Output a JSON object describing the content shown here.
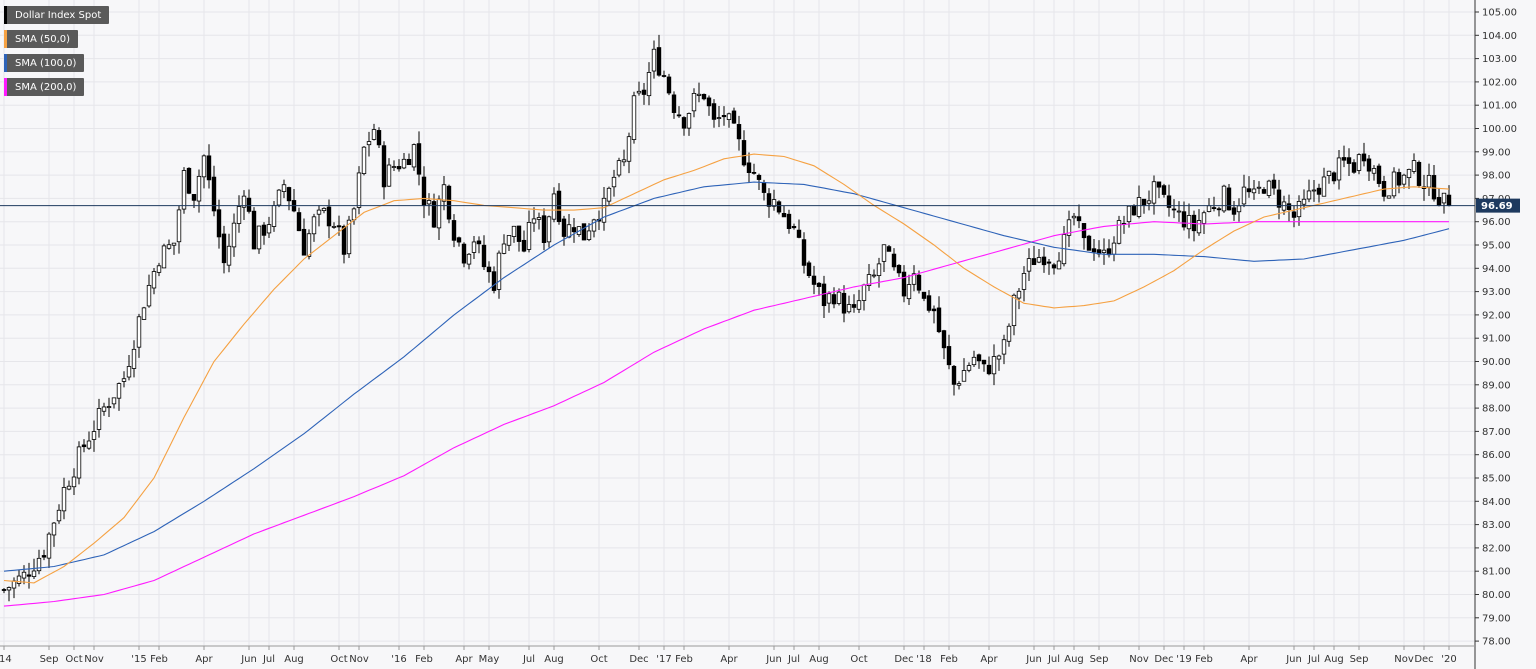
{
  "legend": {
    "main_label": "Dollar Index Spot",
    "sma50_label": "SMA (50,0)",
    "sma100_label": "SMA (100,0)",
    "sma200_label": "SMA (200,0)"
  },
  "colors": {
    "background": "#f7f7f9",
    "grid": "#e6e6ea",
    "candle_up": "#ffffff",
    "candle_down": "#000000",
    "sma50": "#f5a142",
    "sma100": "#2e63b8",
    "sma200": "#ff1aff",
    "price_line": "#1e3a5f",
    "legend_bg": "#5a5a5a"
  },
  "chart_data": {
    "type": "candlestick",
    "title": "",
    "ylim": [
      78,
      105.5
    ],
    "y_ticks": [
      "105.00",
      "104.00",
      "103.00",
      "102.00",
      "101.00",
      "100.00",
      "99.00",
      "98.00",
      "97.00",
      "96.00",
      "95.00",
      "94.00",
      "93.00",
      "92.00",
      "91.00",
      "90.00",
      "89.00",
      "88.00",
      "87.00",
      "86.00",
      "85.00",
      "84.00",
      "83.00",
      "82.00",
      "81.00",
      "80.00",
      "79.00",
      "78.00"
    ],
    "x_labels": [
      {
        "label": "'14",
        "week": 0
      },
      {
        "label": "Sep",
        "week": 9
      },
      {
        "label": "Oct",
        "week": 14
      },
      {
        "label": "Nov",
        "week": 18
      },
      {
        "label": "'15",
        "week": 27
      },
      {
        "label": "Feb",
        "week": 31
      },
      {
        "label": "Apr",
        "week": 40
      },
      {
        "label": "Jun",
        "week": 49
      },
      {
        "label": "Jul",
        "week": 53
      },
      {
        "label": "Aug",
        "week": 58
      },
      {
        "label": "Oct",
        "week": 67
      },
      {
        "label": "Nov",
        "week": 71
      },
      {
        "label": "'16",
        "week": 79
      },
      {
        "label": "Feb",
        "week": 84
      },
      {
        "label": "Apr",
        "week": 92
      },
      {
        "label": "May",
        "week": 97
      },
      {
        "label": "Jul",
        "week": 105
      },
      {
        "label": "Aug",
        "week": 110
      },
      {
        "label": "Oct",
        "week": 119
      },
      {
        "label": "Dec",
        "week": 127
      },
      {
        "label": "'17",
        "week": 132
      },
      {
        "label": "Feb",
        "week": 136
      },
      {
        "label": "Apr",
        "week": 145
      },
      {
        "label": "Jun",
        "week": 154
      },
      {
        "label": "Jul",
        "week": 158
      },
      {
        "label": "Aug",
        "week": 163
      },
      {
        "label": "Oct",
        "week": 171
      },
      {
        "label": "Dec",
        "week": 180
      },
      {
        "label": "'18",
        "week": 184
      },
      {
        "label": "Feb",
        "week": 189
      },
      {
        "label": "Apr",
        "week": 197
      },
      {
        "label": "Jun",
        "week": 206
      },
      {
        "label": "Jul",
        "week": 210
      },
      {
        "label": "Aug",
        "week": 214
      },
      {
        "label": "Sep",
        "week": 219
      },
      {
        "label": "Nov",
        "week": 227
      },
      {
        "label": "Dec",
        "week": 232
      },
      {
        "label": "'19",
        "week": 236
      },
      {
        "label": "Feb",
        "week": 240
      },
      {
        "label": "Apr",
        "week": 249
      },
      {
        "label": "Jun",
        "week": 258
      },
      {
        "label": "Jul",
        "week": 262
      },
      {
        "label": "Aug",
        "week": 266
      },
      {
        "label": "Sep",
        "week": 271
      },
      {
        "label": "Nov",
        "week": 280
      },
      {
        "label": "Dec",
        "week": 284
      },
      {
        "label": "'20",
        "week": 289
      }
    ],
    "last_price_label": "96.69",
    "last_price": 96.69,
    "close_anchors": [
      [
        0,
        80.2
      ],
      [
        4,
        80.8
      ],
      [
        8,
        81.9
      ],
      [
        12,
        84.5
      ],
      [
        16,
        86.4
      ],
      [
        20,
        88.0
      ],
      [
        24,
        89.3
      ],
      [
        28,
        92.6
      ],
      [
        31,
        94.5
      ],
      [
        34,
        95.1
      ],
      [
        36,
        98.0
      ],
      [
        38,
        97.2
      ],
      [
        40,
        98.8
      ],
      [
        42,
        96.5
      ],
      [
        44,
        94.2
      ],
      [
        46,
        95.8
      ],
      [
        48,
        97.5
      ],
      [
        50,
        95.1
      ],
      [
        52,
        95.7
      ],
      [
        54,
        96.4
      ],
      [
        56,
        97.6
      ],
      [
        58,
        96.5
      ],
      [
        60,
        94.9
      ],
      [
        62,
        96.0
      ],
      [
        64,
        96.3
      ],
      [
        66,
        96.0
      ],
      [
        68,
        94.8
      ],
      [
        70,
        96.5
      ],
      [
        72,
        99.1
      ],
      [
        74,
        100.0
      ],
      [
        76,
        97.9
      ],
      [
        78,
        98.4
      ],
      [
        80,
        98.6
      ],
      [
        82,
        99.2
      ],
      [
        84,
        97.0
      ],
      [
        86,
        96.2
      ],
      [
        88,
        97.5
      ],
      [
        90,
        95.6
      ],
      [
        92,
        94.6
      ],
      [
        94,
        95.3
      ],
      [
        96,
        94.1
      ],
      [
        98,
        93.4
      ],
      [
        100,
        95.4
      ],
      [
        102,
        95.6
      ],
      [
        104,
        94.8
      ],
      [
        106,
        96.3
      ],
      [
        108,
        95.4
      ],
      [
        110,
        97.3
      ],
      [
        112,
        95.6
      ],
      [
        114,
        95.9
      ],
      [
        116,
        95.4
      ],
      [
        118,
        96.3
      ],
      [
        120,
        96.6
      ],
      [
        122,
        97.9
      ],
      [
        124,
        98.5
      ],
      [
        126,
        101.0
      ],
      [
        128,
        101.6
      ],
      [
        130,
        103.1
      ],
      [
        132,
        102.3
      ],
      [
        134,
        101.0
      ],
      [
        136,
        100.4
      ],
      [
        138,
        101.2
      ],
      [
        140,
        101.5
      ],
      [
        142,
        100.2
      ],
      [
        144,
        100.6
      ],
      [
        146,
        99.8
      ],
      [
        148,
        98.8
      ],
      [
        150,
        98.1
      ],
      [
        152,
        97.1
      ],
      [
        154,
        96.9
      ],
      [
        156,
        96.3
      ],
      [
        158,
        95.6
      ],
      [
        160,
        94.2
      ],
      [
        162,
        93.3
      ],
      [
        164,
        92.6
      ],
      [
        166,
        92.9
      ],
      [
        168,
        92.4
      ],
      [
        170,
        92.0
      ],
      [
        172,
        93.1
      ],
      [
        174,
        93.6
      ],
      [
        176,
        94.8
      ],
      [
        178,
        93.8
      ],
      [
        180,
        93.0
      ],
      [
        182,
        94.0
      ],
      [
        184,
        92.6
      ],
      [
        186,
        92.2
      ],
      [
        188,
        90.4
      ],
      [
        190,
        89.0
      ],
      [
        192,
        89.6
      ],
      [
        194,
        90.2
      ],
      [
        196,
        89.6
      ],
      [
        198,
        90.0
      ],
      [
        200,
        90.6
      ],
      [
        202,
        92.5
      ],
      [
        204,
        93.8
      ],
      [
        206,
        94.4
      ],
      [
        208,
        94.6
      ],
      [
        210,
        94.4
      ],
      [
        212,
        95.1
      ],
      [
        214,
        96.2
      ],
      [
        216,
        95.0
      ],
      [
        218,
        95.0
      ],
      [
        220,
        94.5
      ],
      [
        222,
        95.4
      ],
      [
        224,
        96.0
      ],
      [
        226,
        96.6
      ],
      [
        228,
        96.9
      ],
      [
        230,
        97.3
      ],
      [
        232,
        96.8
      ],
      [
        234,
        96.4
      ],
      [
        236,
        96.1
      ],
      [
        238,
        95.7
      ],
      [
        240,
        96.4
      ],
      [
        242,
        96.8
      ],
      [
        244,
        97.1
      ],
      [
        246,
        96.6
      ],
      [
        248,
        97.3
      ],
      [
        250,
        97.0
      ],
      [
        252,
        97.6
      ],
      [
        254,
        97.2
      ],
      [
        256,
        96.7
      ],
      [
        258,
        96.2
      ],
      [
        260,
        96.7
      ],
      [
        262,
        97.4
      ],
      [
        264,
        97.7
      ],
      [
        266,
        98.1
      ],
      [
        268,
        98.5
      ],
      [
        270,
        98.4
      ],
      [
        272,
        99.0
      ],
      [
        274,
        98.2
      ],
      [
        276,
        97.4
      ],
      [
        278,
        97.7
      ],
      [
        280,
        97.9
      ],
      [
        282,
        98.2
      ],
      [
        284,
        97.7
      ],
      [
        286,
        97.4
      ],
      [
        288,
        96.8
      ],
      [
        289,
        96.69
      ]
    ],
    "sma50_anchors": [
      [
        0,
        80.6
      ],
      [
        6,
        80.5
      ],
      [
        12,
        81.2
      ],
      [
        18,
        82.2
      ],
      [
        24,
        83.3
      ],
      [
        30,
        85.0
      ],
      [
        36,
        87.6
      ],
      [
        42,
        90.0
      ],
      [
        48,
        91.6
      ],
      [
        54,
        93.1
      ],
      [
        60,
        94.4
      ],
      [
        66,
        95.4
      ],
      [
        72,
        96.4
      ],
      [
        78,
        96.9
      ],
      [
        84,
        97.0
      ],
      [
        90,
        96.9
      ],
      [
        96,
        96.7
      ],
      [
        102,
        96.6
      ],
      [
        108,
        96.5
      ],
      [
        114,
        96.5
      ],
      [
        120,
        96.6
      ],
      [
        126,
        97.2
      ],
      [
        132,
        97.8
      ],
      [
        138,
        98.2
      ],
      [
        144,
        98.7
      ],
      [
        150,
        98.9
      ],
      [
        156,
        98.8
      ],
      [
        162,
        98.4
      ],
      [
        168,
        97.6
      ],
      [
        174,
        96.7
      ],
      [
        180,
        95.9
      ],
      [
        186,
        95.0
      ],
      [
        192,
        94.0
      ],
      [
        198,
        93.2
      ],
      [
        204,
        92.5
      ],
      [
        210,
        92.3
      ],
      [
        216,
        92.4
      ],
      [
        222,
        92.6
      ],
      [
        228,
        93.2
      ],
      [
        234,
        93.9
      ],
      [
        240,
        94.8
      ],
      [
        246,
        95.6
      ],
      [
        252,
        96.2
      ],
      [
        258,
        96.5
      ],
      [
        264,
        96.8
      ],
      [
        270,
        97.1
      ],
      [
        276,
        97.4
      ],
      [
        282,
        97.5
      ],
      [
        289,
        97.4
      ]
    ],
    "sma100_anchors": [
      [
        0,
        81.0
      ],
      [
        10,
        81.2
      ],
      [
        20,
        81.7
      ],
      [
        30,
        82.7
      ],
      [
        40,
        84.0
      ],
      [
        50,
        85.4
      ],
      [
        60,
        86.9
      ],
      [
        70,
        88.6
      ],
      [
        80,
        90.2
      ],
      [
        90,
        92.0
      ],
      [
        100,
        93.6
      ],
      [
        110,
        95.0
      ],
      [
        120,
        96.2
      ],
      [
        130,
        97.0
      ],
      [
        140,
        97.5
      ],
      [
        150,
        97.7
      ],
      [
        160,
        97.6
      ],
      [
        170,
        97.2
      ],
      [
        180,
        96.6
      ],
      [
        190,
        96.0
      ],
      [
        200,
        95.4
      ],
      [
        210,
        94.9
      ],
      [
        220,
        94.6
      ],
      [
        230,
        94.6
      ],
      [
        240,
        94.5
      ],
      [
        250,
        94.3
      ],
      [
        260,
        94.4
      ],
      [
        270,
        94.8
      ],
      [
        280,
        95.2
      ],
      [
        289,
        95.7
      ]
    ],
    "sma200_anchors": [
      [
        0,
        79.5
      ],
      [
        10,
        79.7
      ],
      [
        20,
        80.0
      ],
      [
        30,
        80.6
      ],
      [
        40,
        81.6
      ],
      [
        50,
        82.6
      ],
      [
        60,
        83.4
      ],
      [
        70,
        84.2
      ],
      [
        80,
        85.1
      ],
      [
        90,
        86.3
      ],
      [
        100,
        87.3
      ],
      [
        110,
        88.1
      ],
      [
        120,
        89.1
      ],
      [
        130,
        90.4
      ],
      [
        140,
        91.4
      ],
      [
        150,
        92.2
      ],
      [
        160,
        92.7
      ],
      [
        170,
        93.2
      ],
      [
        180,
        93.6
      ],
      [
        190,
        94.2
      ],
      [
        200,
        94.8
      ],
      [
        210,
        95.4
      ],
      [
        220,
        95.8
      ],
      [
        230,
        96.0
      ],
      [
        240,
        95.9
      ],
      [
        250,
        96.0
      ],
      [
        260,
        96.0
      ],
      [
        270,
        96.0
      ],
      [
        280,
        96.0
      ],
      [
        289,
        96.0
      ]
    ]
  }
}
